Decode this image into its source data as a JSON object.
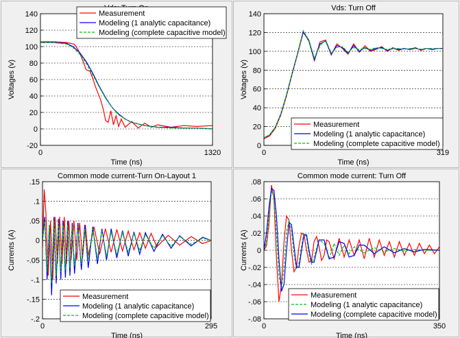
{
  "chart_data": [
    {
      "type": "line",
      "title": "Vds: Turn On",
      "xlabel": "Time (ns)",
      "ylabel": "Voltages (v)",
      "xlim": [
        0,
        1320
      ],
      "ylim": [
        -20,
        140
      ],
      "x_ticks": [
        0,
        1320
      ],
      "y_ticks": [
        -20,
        0,
        20,
        40,
        60,
        80,
        100,
        120,
        140
      ],
      "grid": true,
      "legend": "top-right",
      "series": [
        {
          "name": "Measurement",
          "color": "#ff0000",
          "x": [
            0,
            100,
            200,
            260,
            290,
            320,
            350,
            380,
            400,
            420,
            440,
            460,
            480,
            500,
            520,
            540,
            560,
            580,
            600,
            620,
            650,
            700,
            750,
            800,
            850,
            900,
            1000,
            1100,
            1200,
            1320
          ],
          "y": [
            106,
            106,
            105,
            103,
            96,
            85,
            72,
            70,
            62,
            52,
            44,
            36,
            25,
            10,
            8,
            22,
            5,
            16,
            3,
            12,
            2,
            9,
            1,
            7,
            2,
            5,
            2,
            4,
            3,
            4
          ]
        },
        {
          "name": "Modeling (1 analytic capacitance)",
          "color": "#0000ff",
          "x": [
            0,
            100,
            200,
            250,
            300,
            350,
            400,
            450,
            500,
            550,
            600,
            650,
            700,
            750,
            800,
            850,
            900,
            1000,
            1100,
            1200,
            1320
          ],
          "y": [
            105,
            105,
            104,
            100,
            93,
            82,
            68,
            52,
            38,
            26,
            18,
            12,
            8,
            6,
            4,
            3,
            2,
            2,
            1,
            1,
            0
          ]
        },
        {
          "name": "Modeling (complete capacitive model)",
          "color": "#00c000",
          "x": [
            0,
            100,
            200,
            250,
            300,
            350,
            400,
            450,
            500,
            550,
            600,
            650,
            700,
            750,
            800,
            850,
            900,
            1000,
            1100,
            1200,
            1320
          ],
          "y": [
            105,
            105,
            103,
            99,
            91,
            80,
            66,
            51,
            37,
            26,
            17,
            12,
            8,
            6,
            4,
            3,
            2,
            1,
            1,
            1,
            0
          ]
        }
      ]
    },
    {
      "type": "line",
      "title": "Vds: Turn Off",
      "xlabel": "Time (ns)",
      "ylabel": "Voltages (v)",
      "xlim": [
        0,
        319
      ],
      "ylim": [
        0,
        140
      ],
      "x_ticks": [
        0,
        319
      ],
      "y_ticks": [
        0,
        20,
        40,
        60,
        80,
        100,
        120,
        140
      ],
      "grid": true,
      "legend": "bottom-right",
      "series": [
        {
          "name": "Measurement",
          "color": "#ff0000",
          "x": [
            0,
            10,
            20,
            30,
            40,
            50,
            60,
            70,
            80,
            90,
            100,
            110,
            120,
            130,
            140,
            150,
            160,
            170,
            180,
            190,
            200,
            210,
            220,
            230,
            240,
            250,
            260,
            270,
            280,
            290,
            300,
            310,
            319
          ],
          "y": [
            7,
            10,
            18,
            32,
            52,
            75,
            97,
            120,
            112,
            90,
            110,
            112,
            96,
            108,
            103,
            97,
            108,
            99,
            106,
            100,
            102,
            105,
            100,
            104,
            101,
            103,
            102,
            104,
            101,
            103,
            102,
            103,
            103
          ]
        },
        {
          "name": "Modeling (1 analytic capacitance)",
          "color": "#0000ff",
          "x": [
            0,
            10,
            20,
            30,
            40,
            50,
            60,
            70,
            80,
            90,
            100,
            110,
            120,
            130,
            140,
            150,
            160,
            170,
            180,
            190,
            200,
            210,
            220,
            230,
            240,
            250,
            260,
            270,
            280,
            290,
            300,
            310,
            319
          ],
          "y": [
            8,
            11,
            19,
            33,
            53,
            76,
            98,
            121,
            111,
            91,
            108,
            111,
            97,
            106,
            104,
            98,
            106,
            100,
            104,
            101,
            103,
            104,
            101,
            103,
            102,
            103,
            102,
            103,
            102,
            103,
            102,
            103,
            103
          ]
        },
        {
          "name": "Modeling (complete capacitive model)",
          "color": "#00c000",
          "x": [
            0,
            10,
            20,
            30,
            40,
            50,
            60,
            70,
            80,
            90,
            100,
            110,
            120,
            130,
            140,
            150,
            160,
            170,
            180,
            190,
            200,
            210,
            220,
            230,
            240,
            250,
            260,
            270,
            280,
            290,
            300,
            310,
            319
          ],
          "y": [
            8,
            11,
            19,
            33,
            53,
            76,
            98,
            122,
            112,
            93,
            106,
            112,
            98,
            104,
            105,
            99,
            104,
            102,
            103,
            102,
            104,
            103,
            102,
            103,
            103,
            102,
            103,
            103,
            102,
            103,
            103,
            103,
            103
          ]
        }
      ]
    },
    {
      "type": "line",
      "title": "Common mode current-Turn On-Layout 1",
      "xlabel": "Time (ns)",
      "ylabel": "Currents (A)",
      "xlim": [
        0,
        295
      ],
      "ylim": [
        -0.2,
        0.15
      ],
      "x_ticks": [
        0,
        295
      ],
      "y_ticks": [
        -0.2,
        -0.15,
        -0.1,
        -0.05,
        0,
        0.05,
        0.1,
        0.15
      ],
      "grid": true,
      "legend": "bottom-right",
      "series": [
        {
          "name": "Measurement",
          "color": "#ff0000",
          "x": [
            0,
            3,
            6,
            10,
            14,
            18,
            22,
            26,
            30,
            34,
            38,
            42,
            46,
            50,
            55,
            60,
            65,
            70,
            75,
            80,
            90,
            100,
            110,
            120,
            130,
            140,
            150,
            160,
            170,
            180,
            190,
            200,
            220,
            240,
            260,
            280,
            295
          ],
          "y": [
            -0.02,
            0.13,
            0.07,
            -0.09,
            0.05,
            -0.1,
            0.06,
            -0.06,
            0.06,
            -0.06,
            0.06,
            -0.06,
            0.05,
            -0.05,
            0.05,
            -0.05,
            0.045,
            -0.045,
            0.04,
            -0.04,
            0.035,
            -0.035,
            0.03,
            -0.03,
            0.028,
            -0.027,
            0.024,
            -0.024,
            0.02,
            -0.02,
            0.018,
            -0.016,
            0.013,
            -0.012,
            0.01,
            -0.008,
            0
          ]
        },
        {
          "name": "Modeling (1 analytic capacitance)",
          "color": "#0000ff",
          "x": [
            0,
            4,
            8,
            12,
            16,
            20,
            24,
            28,
            32,
            36,
            40,
            44,
            48,
            52,
            56,
            62,
            68,
            74,
            80,
            88,
            96,
            104,
            112,
            120,
            130,
            140,
            150,
            160,
            170,
            180,
            195,
            210,
            225,
            240,
            260,
            280,
            295
          ],
          "y": [
            0,
            0.06,
            -0.1,
            0.04,
            -0.14,
            0.06,
            -0.11,
            0.055,
            -0.1,
            0.05,
            -0.095,
            0.05,
            -0.09,
            0.045,
            -0.085,
            0.045,
            -0.075,
            0.04,
            -0.07,
            0.035,
            -0.06,
            0.03,
            -0.05,
            0.03,
            -0.045,
            0.025,
            -0.04,
            0.022,
            -0.035,
            0.02,
            -0.028,
            0.016,
            -0.02,
            0.012,
            -0.014,
            0.008,
            0
          ]
        },
        {
          "name": "Modeling (complete capacitive model)",
          "color": "#00c000",
          "x": [
            0,
            4,
            8,
            12,
            16,
            20,
            24,
            28,
            32,
            36,
            40,
            44,
            48,
            52,
            56,
            62,
            68,
            74,
            80,
            88,
            96,
            104,
            112,
            120,
            130,
            140,
            150,
            160,
            170,
            180,
            195,
            210,
            225,
            240,
            260,
            280,
            295
          ],
          "y": [
            0,
            0.05,
            -0.08,
            0.04,
            -0.11,
            0.05,
            -0.09,
            0.045,
            -0.08,
            0.04,
            -0.075,
            0.04,
            -0.07,
            0.035,
            -0.065,
            0.035,
            -0.06,
            0.03,
            -0.05,
            0.03,
            -0.045,
            0.025,
            -0.04,
            0.022,
            -0.035,
            0.02,
            -0.03,
            0.018,
            -0.026,
            0.015,
            -0.02,
            0.012,
            -0.015,
            0.01,
            -0.01,
            0.006,
            0
          ]
        }
      ]
    },
    {
      "type": "line",
      "title": "Common mode current: Turn Off",
      "xlabel": "Time (ns)",
      "ylabel": "Currents (A)",
      "xlim": [
        0,
        350
      ],
      "ylim": [
        -0.08,
        0.08
      ],
      "x_ticks": [
        0,
        350
      ],
      "y_ticks": [
        -0.08,
        -0.06,
        -0.04,
        -0.02,
        0,
        0.02,
        0.04,
        0.06,
        0.08
      ],
      "grid": true,
      "legend": "bottom-right",
      "series": [
        {
          "name": "Measurement",
          "color": "#ff0000",
          "x": [
            0,
            5,
            10,
            15,
            20,
            25,
            30,
            35,
            40,
            45,
            50,
            55,
            60,
            65,
            70,
            75,
            80,
            85,
            90,
            95,
            100,
            105,
            110,
            115,
            120,
            125,
            130,
            140,
            150,
            160,
            170,
            180,
            190,
            200,
            210,
            220,
            230,
            240,
            250,
            260,
            270,
            280,
            290,
            300,
            310,
            320,
            330,
            340,
            350
          ],
          "y": [
            0,
            0.005,
            0.03,
            0.076,
            0.06,
            -0.01,
            -0.06,
            -0.04,
            0.01,
            0.04,
            0.035,
            0.0,
            -0.025,
            -0.02,
            0.005,
            0.02,
            0.018,
            0.0,
            -0.014,
            -0.012,
            0.01,
            0.016,
            0.004,
            -0.012,
            -0.006,
            0.012,
            0.01,
            -0.01,
            0.014,
            -0.008,
            0.012,
            -0.006,
            0.012,
            -0.01,
            0.014,
            -0.008,
            0.012,
            -0.006,
            0.01,
            -0.008,
            0.01,
            -0.006,
            0.008,
            -0.006,
            0.008,
            -0.004,
            0.006,
            -0.004,
            0.004
          ]
        },
        {
          "name": "Modeling (1 analytic capacitance)",
          "color": "#00c000",
          "x": [
            0,
            5,
            10,
            15,
            20,
            25,
            30,
            35,
            40,
            45,
            50,
            55,
            60,
            65,
            70,
            75,
            80,
            85,
            90,
            95,
            100,
            110,
            120,
            130,
            140,
            150,
            160,
            170,
            180,
            200,
            220,
            240,
            260,
            280,
            300,
            320,
            350
          ],
          "y": [
            0,
            0.01,
            0.04,
            0.07,
            0.062,
            0.02,
            -0.03,
            -0.045,
            -0.02,
            0.02,
            0.035,
            0.022,
            -0.005,
            -0.022,
            -0.015,
            0.005,
            0.02,
            0.015,
            -0.005,
            -0.016,
            -0.008,
            0.012,
            0.008,
            -0.01,
            0.008,
            -0.006,
            0.006,
            -0.004,
            0.004,
            -0.003,
            0.003,
            -0.002,
            0.002,
            -0.001,
            0.001,
            0,
            0
          ]
        },
        {
          "name": "Modeling (complete capacitive model)",
          "color": "#0000ff",
          "x": [
            0,
            5,
            10,
            15,
            20,
            25,
            30,
            35,
            40,
            45,
            50,
            55,
            60,
            65,
            70,
            75,
            80,
            85,
            90,
            95,
            100,
            110,
            120,
            130,
            140,
            150,
            160,
            170,
            180,
            190,
            200,
            220,
            240,
            260,
            280,
            300,
            320,
            350
          ],
          "y": [
            0,
            0.02,
            0.05,
            0.072,
            0.07,
            0.04,
            -0.01,
            -0.048,
            -0.04,
            0.0,
            0.032,
            0.03,
            0.005,
            -0.02,
            -0.02,
            0.0,
            0.018,
            0.018,
            0.0,
            -0.014,
            -0.014,
            0.012,
            0.012,
            -0.01,
            -0.008,
            0.01,
            0.008,
            -0.008,
            -0.006,
            0.006,
            0.006,
            -0.004,
            0.004,
            -0.003,
            0.002,
            -0.002,
            0.001,
            0
          ]
        }
      ]
    }
  ]
}
